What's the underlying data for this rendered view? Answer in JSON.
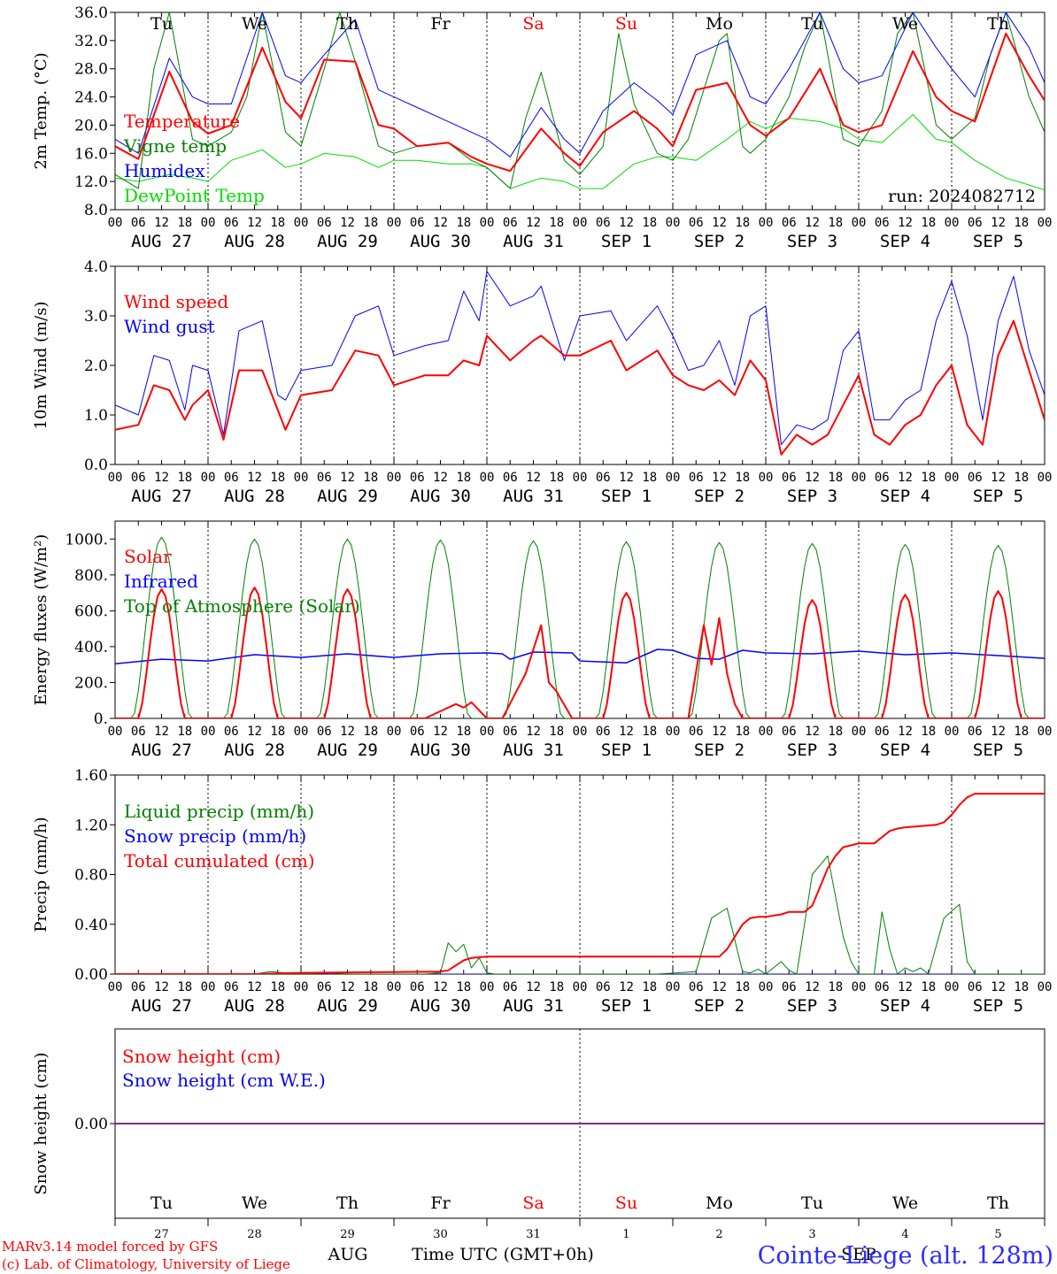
{
  "colors": {
    "temperature": "#ff0000",
    "vigne": "#008000",
    "humidex": "#0000ff",
    "dewpoint": "#00dd00",
    "snow_cm": "#ff0000",
    "snow_we": "#0000ff",
    "snow_line": "#7b2c8a",
    "weekend": "#ff0000",
    "footer_red": "#ff0000",
    "footer_blue": "#0000ff"
  },
  "days": {
    "weekday_labels": [
      "Tu",
      "We",
      "Th",
      "Fr",
      "Sa",
      "Su",
      "Mo",
      "Tu",
      "We",
      "Th"
    ],
    "weekend_flags": [
      false,
      false,
      false,
      false,
      true,
      true,
      false,
      false,
      false,
      false
    ],
    "date_labels": [
      "AUG 27",
      "AUG 28",
      "AUG 29",
      "AUG 30",
      "AUG 31",
      "SEP  1",
      "SEP  2",
      "SEP  3",
      "SEP  4",
      "SEP  5"
    ],
    "day_numbers": [
      "27",
      "28",
      "29",
      "30",
      "31",
      "1",
      "2",
      "3",
      "4",
      "5"
    ],
    "hour_labels": [
      "00",
      "06",
      "12",
      "18"
    ],
    "final_hour_label": "00"
  },
  "run_label": "run: 2024082712",
  "footer": {
    "model_line1": "MARv3.14 model forced by GFS",
    "model_line2": "(c) Lab. of Climatology, University of Liege",
    "month_aug": "AUG",
    "month_sep": "SEP",
    "time_label": "Time UTC (GMT+0h)",
    "station": "Cointe-Liege (alt. 128m)"
  },
  "chart_data": [
    {
      "type": "line",
      "ylabel": "2m Temp. (°C)",
      "ylim": [
        8,
        36
      ],
      "yticks": [
        "8.0",
        "12.0",
        "16.0",
        "20.0",
        "24.0",
        "28.0",
        "32.0",
        "36.0"
      ],
      "x_unit": "hours since 2024-08-27 00 UTC",
      "grid": "vertical dotted at 00 UTC",
      "legend": "upper-left",
      "series": [
        {
          "name": "Temperature",
          "color_key": "temperature",
          "width": 2,
          "x": [
            0,
            6,
            14,
            20,
            24,
            30,
            38,
            44,
            48,
            54,
            62,
            68,
            72,
            78,
            86,
            92,
            96,
            102,
            110,
            116,
            120,
            126,
            134,
            140,
            144,
            150,
            158,
            164,
            168,
            174,
            182,
            188,
            192,
            198,
            206,
            212,
            216,
            222,
            230,
            236,
            240
          ],
          "y": [
            17,
            15.2,
            27.6,
            20.5,
            18.8,
            20,
            31,
            23.3,
            21,
            29.3,
            29,
            20,
            19.5,
            17,
            17.5,
            15.5,
            14.5,
            13.5,
            19.5,
            16,
            14.2,
            19,
            22,
            19.5,
            17,
            25,
            26,
            20,
            18.5,
            21,
            28,
            20,
            19,
            20,
            30.5,
            24,
            22,
            20.5,
            33,
            27,
            23.5
          ]
        },
        {
          "name": "Vigne temp",
          "color_key": "vigne",
          "width": 1,
          "x": [
            0,
            6,
            10,
            14,
            20,
            24,
            30,
            34,
            38,
            44,
            48,
            54,
            58,
            62,
            68,
            72,
            78,
            86,
            92,
            96,
            102,
            106,
            110,
            116,
            120,
            126,
            130,
            134,
            140,
            144,
            148,
            156,
            158,
            162,
            164,
            168,
            174,
            178,
            182,
            188,
            192,
            198,
            202,
            206,
            212,
            216,
            222,
            226,
            230,
            236,
            240
          ],
          "y": [
            13,
            11,
            28,
            36,
            18,
            17,
            19,
            24,
            36,
            19,
            17,
            28,
            36,
            29,
            17,
            16,
            17,
            17.5,
            15,
            14,
            11,
            21,
            27.5,
            15,
            13,
            17,
            33,
            23,
            16,
            15,
            18,
            32,
            33,
            17,
            16,
            18,
            24,
            31,
            36,
            18,
            17,
            22,
            33,
            36,
            20,
            18,
            21,
            30,
            36,
            24,
            19
          ]
        },
        {
          "name": "Humidex",
          "color_key": "humidex",
          "width": 1,
          "x": [
            0,
            6,
            14,
            20,
            24,
            30,
            38,
            44,
            48,
            54,
            62,
            68,
            72,
            78,
            86,
            92,
            96,
            102,
            110,
            116,
            120,
            126,
            134,
            140,
            144,
            150,
            158,
            164,
            168,
            174,
            182,
            188,
            192,
            198,
            206,
            212,
            216,
            222,
            230,
            236,
            240
          ],
          "y": [
            18,
            16,
            29.5,
            24,
            23,
            23,
            36,
            27,
            26,
            30,
            35,
            25,
            24,
            22.5,
            20.5,
            19,
            18,
            15.5,
            22.5,
            18,
            16,
            22,
            26,
            23.5,
            21.5,
            30,
            32,
            24,
            23,
            28,
            36,
            28,
            26,
            27,
            36,
            31,
            28,
            24,
            36,
            31,
            26
          ]
        },
        {
          "name": "DewPoint Temp",
          "color_key": "dewpoint",
          "width": 1,
          "x": [
            0,
            6,
            14,
            20,
            24,
            30,
            38,
            44,
            48,
            54,
            62,
            68,
            72,
            78,
            86,
            92,
            96,
            102,
            110,
            116,
            120,
            126,
            134,
            140,
            144,
            150,
            158,
            164,
            168,
            174,
            182,
            188,
            192,
            198,
            206,
            212,
            216,
            222,
            230,
            236,
            240
          ],
          "y": [
            12.5,
            12,
            13,
            12.5,
            12,
            15,
            16.5,
            14,
            14.5,
            16,
            15.5,
            14,
            15,
            15,
            14.5,
            14.5,
            14,
            11,
            12.5,
            12,
            11,
            11,
            14.5,
            15.5,
            15.5,
            15,
            18,
            20.5,
            19.5,
            21,
            20.5,
            19.5,
            18,
            17.5,
            21.5,
            18,
            17.5,
            15,
            12.5,
            11.5,
            10.8
          ]
        }
      ]
    },
    {
      "type": "line",
      "ylabel": "10m Wind (m/s)",
      "ylim": [
        0,
        4
      ],
      "yticks": [
        "0.0",
        "1.0",
        "2.0",
        "3.0",
        "4.0"
      ],
      "legend": "upper-left",
      "series": [
        {
          "name": "Wind speed",
          "color_key": "temperature",
          "width": 2,
          "x": [
            0,
            6,
            10,
            14,
            18,
            20,
            24,
            28,
            32,
            38,
            42,
            44,
            48,
            56,
            62,
            68,
            72,
            80,
            86,
            90,
            94,
            96,
            102,
            108,
            110,
            116,
            120,
            128,
            132,
            140,
            144,
            148,
            152,
            156,
            160,
            164,
            168,
            172,
            176,
            180,
            184,
            188,
            192,
            196,
            200,
            204,
            208,
            212,
            216,
            220,
            224,
            228,
            232,
            236,
            240
          ],
          "y": [
            0.7,
            0.8,
            1.6,
            1.5,
            0.9,
            1.2,
            1.5,
            0.5,
            1.9,
            1.9,
            1.1,
            0.7,
            1.4,
            1.5,
            2.3,
            2.2,
            1.6,
            1.8,
            1.8,
            2.1,
            2.0,
            2.6,
            2.1,
            2.5,
            2.6,
            2.2,
            2.2,
            2.5,
            1.9,
            2.3,
            1.8,
            1.6,
            1.5,
            1.7,
            1.4,
            2.1,
            1.7,
            0.2,
            0.6,
            0.4,
            0.6,
            1.2,
            1.8,
            0.6,
            0.4,
            0.8,
            1.0,
            1.6,
            2.0,
            0.8,
            0.4,
            2.2,
            2.9,
            1.9,
            0.9
          ]
        },
        {
          "name": "Wind gust",
          "color_key": "humidex",
          "width": 1,
          "x": [
            0,
            6,
            10,
            14,
            18,
            20,
            24,
            28,
            32,
            38,
            42,
            44,
            48,
            56,
            62,
            68,
            72,
            80,
            86,
            90,
            94,
            96,
            102,
            108,
            110,
            116,
            120,
            128,
            132,
            140,
            144,
            148,
            152,
            156,
            160,
            164,
            168,
            172,
            176,
            180,
            184,
            188,
            192,
            196,
            200,
            204,
            208,
            212,
            216,
            220,
            224,
            228,
            232,
            236,
            240
          ],
          "y": [
            1.2,
            1.0,
            2.2,
            2.1,
            1.1,
            2.0,
            1.9,
            0.6,
            2.7,
            2.9,
            1.4,
            1.3,
            1.9,
            2.0,
            3.0,
            3.2,
            2.2,
            2.4,
            2.5,
            3.5,
            2.9,
            3.9,
            3.2,
            3.4,
            3.6,
            2.1,
            3.0,
            3.1,
            2.5,
            3.2,
            2.6,
            1.9,
            2.0,
            2.5,
            1.6,
            3.0,
            3.2,
            0.4,
            0.8,
            0.7,
            0.9,
            2.3,
            2.7,
            0.9,
            0.9,
            1.3,
            1.5,
            2.9,
            3.7,
            2.6,
            0.9,
            2.9,
            3.8,
            2.3,
            1.4
          ]
        }
      ]
    },
    {
      "type": "line",
      "ylabel": "Energy fluxes (W/m²)",
      "ylim": [
        0,
        1100
      ],
      "yticks": [
        "0.",
        "200.",
        "400.",
        "600.",
        "800.",
        "1000."
      ],
      "legend": "upper-left",
      "series": [
        {
          "name": "Solar",
          "color_key": "temperature",
          "width": 2,
          "peaks": [
            720,
            730,
            720,
            0,
            0,
            700,
            540,
            660,
            690,
            710
          ],
          "extra_x": [
            80,
            84,
            88,
            90,
            92,
            96,
            100,
            106,
            110,
            112,
            114,
            118,
            120,
            122,
            126,
            130,
            136,
            142,
            148,
            152,
            154,
            156,
            158,
            160,
            162,
            164
          ],
          "extra_y": [
            0,
            40,
            80,
            60,
            90,
            0,
            0,
            250,
            520,
            200,
            150,
            0,
            0,
            0,
            0,
            0,
            0,
            0,
            0,
            520,
            300,
            560,
            250,
            80,
            0,
            0
          ]
        },
        {
          "name": "Infrared",
          "color_key": "humidex",
          "width": 1.5,
          "x": [
            0,
            12,
            24,
            36,
            48,
            60,
            72,
            84,
            96,
            100,
            102,
            108,
            118,
            120,
            132,
            140,
            144,
            150,
            156,
            162,
            168,
            180,
            192,
            204,
            216,
            228,
            240
          ],
          "y": [
            305,
            330,
            320,
            355,
            340,
            360,
            340,
            360,
            365,
            360,
            330,
            370,
            365,
            320,
            310,
            385,
            380,
            335,
            330,
            380,
            365,
            360,
            375,
            355,
            365,
            350,
            335
          ]
        },
        {
          "name": "Top of Atmosphere (Solar)",
          "color_key": "vigne",
          "width": 1,
          "peaks": [
            1010,
            1000,
            1000,
            995,
            990,
            985,
            980,
            975,
            970,
            965
          ]
        }
      ]
    },
    {
      "type": "line",
      "ylabel": "Precip (mm/h)",
      "ylim": [
        0,
        1.6
      ],
      "yticks": [
        "0.00",
        "0.40",
        "0.80",
        "1.20",
        "1.60"
      ],
      "legend": "upper-left",
      "series": [
        {
          "name": "Liquid precip (mm/h)",
          "color_key": "vigne",
          "width": 1,
          "x": [
            0,
            36,
            40,
            44,
            48,
            56,
            60,
            80,
            84,
            86,
            88,
            90,
            92,
            94,
            96,
            98,
            100,
            140,
            150,
            154,
            158,
            162,
            164,
            166,
            168,
            172,
            174,
            176,
            180,
            184,
            188,
            190,
            192,
            196,
            198,
            200,
            202,
            204,
            206,
            208,
            210,
            214,
            218,
            220,
            222,
            224,
            240
          ],
          "y": [
            0,
            0,
            0.02,
            0.01,
            0,
            0.01,
            0,
            0,
            0.01,
            0.25,
            0.18,
            0.24,
            0.05,
            0.13,
            0.01,
            0,
            0,
            0,
            0.02,
            0.45,
            0.53,
            0.02,
            0.01,
            0.04,
            0,
            0.1,
            0.03,
            0,
            0.8,
            0.95,
            0.3,
            0.1,
            0,
            0,
            0.5,
            0.2,
            0,
            0.05,
            0.02,
            0.05,
            0,
            0.45,
            0.56,
            0.1,
            0,
            0,
            0
          ]
        },
        {
          "name": "Snow precip (mm/h)",
          "color_key": "humidex",
          "width": 1,
          "x": [
            0,
            240
          ],
          "y": [
            0,
            0
          ]
        },
        {
          "name": "Total cumulated (cm)",
          "color_key": "temperature",
          "width": 2,
          "x": [
            0,
            36,
            48,
            84,
            86,
            88,
            90,
            92,
            96,
            100,
            140,
            156,
            158,
            160,
            162,
            164,
            166,
            168,
            172,
            174,
            176,
            178,
            180,
            182,
            184,
            186,
            188,
            192,
            196,
            198,
            200,
            202,
            204,
            208,
            212,
            214,
            216,
            218,
            220,
            222,
            224,
            240
          ],
          "y": [
            0,
            0,
            0.01,
            0.02,
            0.03,
            0.07,
            0.11,
            0.13,
            0.14,
            0.14,
            0.14,
            0.14,
            0.2,
            0.3,
            0.4,
            0.45,
            0.46,
            0.46,
            0.48,
            0.5,
            0.5,
            0.5,
            0.55,
            0.7,
            0.85,
            0.95,
            1.02,
            1.05,
            1.05,
            1.1,
            1.15,
            1.17,
            1.18,
            1.19,
            1.2,
            1.22,
            1.28,
            1.36,
            1.42,
            1.45,
            1.45,
            1.45
          ]
        }
      ]
    },
    {
      "type": "line",
      "ylabel": "Snow height (cm)",
      "yticks": [
        "0.00"
      ],
      "legend": "upper-left",
      "series": [
        {
          "name": "Snow height (cm)",
          "color_key": "snow_cm",
          "x": [
            0,
            240
          ],
          "y": [
            0,
            0
          ]
        },
        {
          "name": "Snow height (cm W.E.)",
          "color_key": "snow_we",
          "x": [
            0,
            240
          ],
          "y": [
            0,
            0
          ]
        }
      ]
    }
  ]
}
